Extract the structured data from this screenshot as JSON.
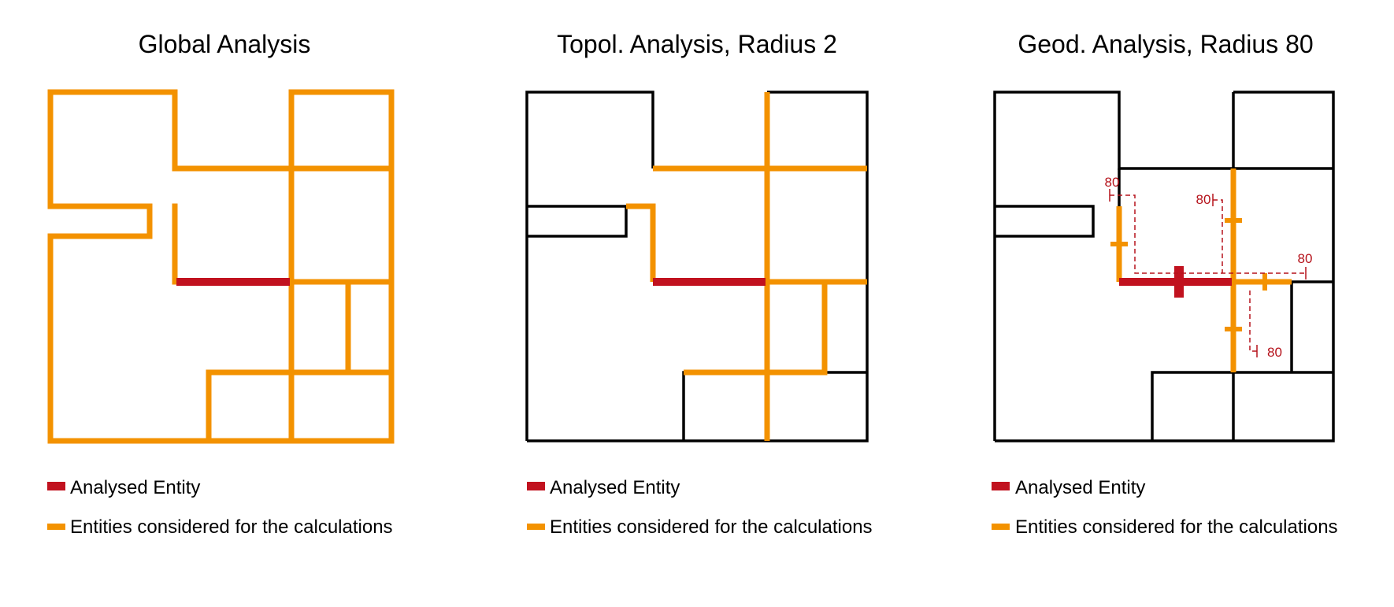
{
  "colors": {
    "analysed": "#c1121f",
    "considered": "#f39200",
    "wall": "#000000",
    "dimension": "#b5121b"
  },
  "panels": [
    {
      "title": "Global Analysis",
      "legend": [
        {
          "color": "analysed",
          "label": "Analysed Entity"
        },
        {
          "color": "considered",
          "label": "Entities considered for the calculations"
        }
      ]
    },
    {
      "title": "Topol. Analysis, Radius 2",
      "legend": [
        {
          "color": "analysed",
          "label": "Analysed Entity"
        },
        {
          "color": "considered",
          "label": "Entities considered for the calculations"
        }
      ]
    },
    {
      "title": "Geod. Analysis, Radius 80",
      "legend": [
        {
          "color": "analysed",
          "label": "Analysed Entity"
        },
        {
          "color": "considered",
          "label": "Entities considered for the calculations"
        }
      ],
      "dimension_labels": [
        "80",
        "80",
        "80",
        "80"
      ]
    }
  ]
}
